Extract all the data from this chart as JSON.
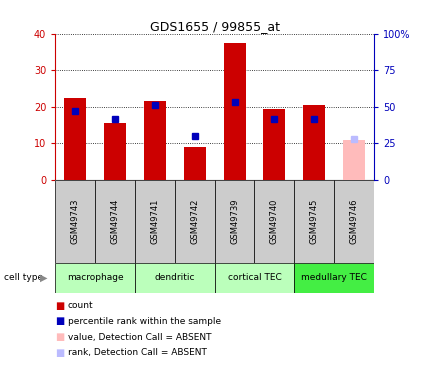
{
  "title": "GDS1655 / 99855_at",
  "samples": [
    "GSM49743",
    "GSM49744",
    "GSM49741",
    "GSM49742",
    "GSM49739",
    "GSM49740",
    "GSM49745",
    "GSM49746"
  ],
  "count_values": [
    22.3,
    15.5,
    21.5,
    9.0,
    37.5,
    19.5,
    20.5,
    11.0
  ],
  "rank_values": [
    47.5,
    42.0,
    51.0,
    30.0,
    53.0,
    42.0,
    42.0,
    28.0
  ],
  "absent_flags": [
    false,
    false,
    false,
    false,
    false,
    false,
    false,
    true
  ],
  "cell_types": [
    {
      "label": "macrophage",
      "start": 0,
      "end": 2,
      "color": "#bbffbb"
    },
    {
      "label": "dendritic",
      "start": 2,
      "end": 4,
      "color": "#bbffbb"
    },
    {
      "label": "cortical TEC",
      "start": 4,
      "end": 6,
      "color": "#bbffbb"
    },
    {
      "label": "medullary TEC",
      "start": 6,
      "end": 8,
      "color": "#44ee44"
    }
  ],
  "ylim_left": [
    0,
    40
  ],
  "ylim_right": [
    0,
    100
  ],
  "yticks_left": [
    0,
    10,
    20,
    30,
    40
  ],
  "yticks_right": [
    0,
    25,
    50,
    75,
    100
  ],
  "count_color": "#cc0000",
  "rank_color": "#0000bb",
  "absent_count_color": "#ffbbbb",
  "absent_rank_color": "#bbbbff",
  "sample_bg_color": "#cccccc"
}
